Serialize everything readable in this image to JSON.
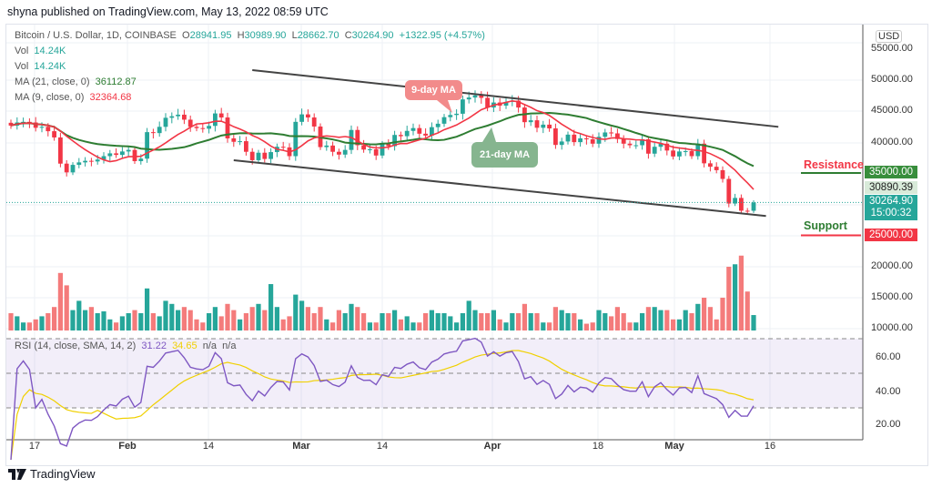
{
  "header": {
    "published": "shyna published on TradingView.com, May 13, 2022 08:59 UTC"
  },
  "legend": {
    "symbol": "Bitcoin / U.S. Dollar, 1D, COINBASE",
    "o_label": "O",
    "o": "28941.95",
    "h_label": "H",
    "h": "30989.90",
    "l_label": "L",
    "l": "28662.70",
    "c_label": "C",
    "c": "30264.90",
    "change": "+1322.95 (+4.57%)",
    "vol1_label": "Vol",
    "vol1": "14.24K",
    "vol2_label": "Vol",
    "vol2": "14.24K",
    "ma21_label": "MA (21, close, 0)",
    "ma21": "36112.87",
    "ma9_label": "MA (9, close, 0)",
    "ma9": "32364.68",
    "rsi_label": "RSI (14, close, SMA, 14, 2)",
    "rsi": "31.22",
    "rsi_sma": "34.65",
    "na1": "n/a",
    "na2": "n/a"
  },
  "axis": {
    "currency": "USD",
    "price_ticks": [
      "55000.00",
      "50000.00",
      "45000.00",
      "40000.00"
    ],
    "volume_ticks": [
      "20000.00",
      "15000.00",
      "10000.00"
    ],
    "rsi_ticks": [
      "60.00",
      "40.00",
      "20.00"
    ],
    "time_ticks": [
      "17",
      "Feb",
      "14",
      "Mar",
      "14",
      "Apr",
      "18",
      "May",
      "16"
    ],
    "tags": {
      "resistance": "35000.00",
      "ma": "30890.39",
      "last": "30264.90",
      "countdown": "15:00:32",
      "support": "25000.00"
    }
  },
  "annotations": {
    "ma9": "9-day MA",
    "ma21": "21-day MA",
    "resistance": "Resistance",
    "support": "Support",
    "channel_upper": {
      "start": [
        "2022-02-21",
        51500
      ],
      "end": [
        "2022-05-17",
        42400
      ]
    },
    "channel_lower": {
      "start": [
        "2022-02-18",
        37040
      ],
      "end": [
        "2022-05-15",
        28100
      ]
    }
  },
  "colors": {
    "up": "#26a69a",
    "down": "#f23645",
    "ma9": "#f23645",
    "ma21": "#2e7d32",
    "rsi": "#7e57c2",
    "rsi_sma": "#f0d000",
    "resistance": "#2e7d32",
    "support": "#f23645"
  },
  "footer": {
    "brand": "TradingView"
  },
  "chart_data": {
    "type": "candlestick",
    "start_date": "2022-01-13",
    "first_open": 43050,
    "closes": [
      42600,
      43100,
      43200,
      43100,
      42250,
      42400,
      41700,
      40700,
      36500,
      35100,
      36300,
      36700,
      36950,
      36850,
      37150,
      37700,
      38150,
      37900,
      38450,
      38700,
      36900,
      37300,
      41550,
      41400,
      42400,
      43850,
      44100,
      44350,
      43550,
      42400,
      42200,
      42100,
      42550,
      44550,
      43900,
      40550,
      40000,
      40100,
      38400,
      37050,
      38250,
      37250,
      38350,
      39200,
      39100,
      37700,
      43200,
      44400,
      43900,
      42450,
      39150,
      39400,
      38400,
      37950,
      38700,
      41900,
      39450,
      38750,
      38800,
      37800,
      39650,
      39300,
      41100,
      40900,
      41750,
      42200,
      41300,
      41000,
      42350,
      42900,
      43950,
      44300,
      44500,
      46800,
      47100,
      47450,
      47050,
      45500,
      46300,
      45800,
      46400,
      46600,
      45500,
      43150,
      43450,
      42250,
      42750,
      42150,
      39500,
      40050,
      41150,
      39950,
      40550,
      40400,
      39700,
      40800,
      41500,
      41350,
      40450,
      39700,
      39450,
      39450,
      40400,
      38100,
      39200,
      39700,
      38600,
      37650,
      38450,
      38500,
      37700,
      39700,
      36550,
      36000,
      35450,
      34050,
      30100,
      31000,
      28950,
      28942,
      30265
    ],
    "volumes": [
      12500,
      12000,
      11000,
      11000,
      11500,
      12000,
      12500,
      13500,
      19000,
      17000,
      13000,
      14500,
      13000,
      13500,
      12500,
      12800,
      11500,
      11000,
      12000,
      12500,
      13000,
      12500,
      16500,
      12500,
      12000,
      14500,
      14000,
      13000,
      13500,
      13000,
      11500,
      11000,
      12500,
      13500,
      12000,
      14000,
      13000,
      11500,
      12500,
      13500,
      14000,
      13000,
      17200,
      13500,
      11500,
      12000,
      15500,
      14500,
      13500,
      12500,
      13500,
      11500,
      11000,
      13000,
      12500,
      14000,
      13500,
      12500,
      11000,
      11000,
      12500,
      12500,
      13000,
      11500,
      12000,
      11000,
      11000,
      12500,
      13000,
      12500,
      12500,
      12000,
      11000,
      12500,
      14500,
      13000,
      12500,
      12500,
      13000,
      11500,
      11000,
      12500,
      12500,
      14000,
      12500,
      12500,
      11000,
      11000,
      13500,
      13000,
      12500,
      12500,
      11500,
      10800,
      11000,
      13000,
      12500,
      12000,
      13500,
      12500,
      11000,
      11000,
      12500,
      13500,
      13500,
      13000,
      13000,
      11500,
      11500,
      13000,
      12500,
      14000,
      15000,
      13500,
      11500,
      15000,
      20000,
      20400,
      21800,
      16000,
      12200
    ],
    "indicators": [
      "MA 9",
      "MA 21",
      "Volume",
      "RSI 14",
      "RSI SMA 14"
    ],
    "rsi_levels": [
      70,
      50,
      30
    ],
    "price_range": [
      24000,
      57000
    ],
    "rsi_range": [
      15,
      75
    ],
    "grid": true
  }
}
